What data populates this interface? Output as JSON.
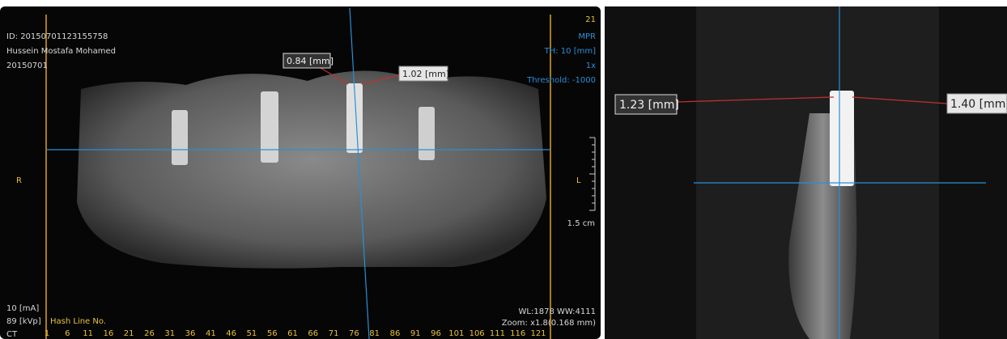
{
  "left_panel": {
    "patient": {
      "id": "ID: 20150701123155758",
      "name": "Hussein Mostafa Mohamed",
      "date": "20150701"
    },
    "top_right": {
      "slice": "21",
      "mode": "MPR",
      "thickness": "TH: 10 [mm]",
      "zoom_factor": "1x",
      "threshold": "Threshold: -1000"
    },
    "measurements": [
      "0.84 [mm]",
      "1.02 [mm]"
    ],
    "orientation": {
      "right": "R",
      "left": "L"
    },
    "scale": "1.5 cm",
    "acquisition": [
      "10 [mA]",
      "89 [kVp]",
      "CT"
    ],
    "hash_label": "Hash Line No.",
    "hash_numbers": [
      1,
      6,
      11,
      16,
      21,
      26,
      31,
      36,
      41,
      46,
      51,
      56,
      61,
      66,
      71,
      76,
      81,
      86,
      91,
      96,
      101,
      106,
      111,
      116,
      121
    ],
    "window": "WL:1878 WW:4111",
    "zoom": "Zoom: x1.8(0.168 mm)"
  },
  "right_panel": {
    "measurements": [
      "1.23 [mm]",
      "1.40 [mm]"
    ]
  }
}
